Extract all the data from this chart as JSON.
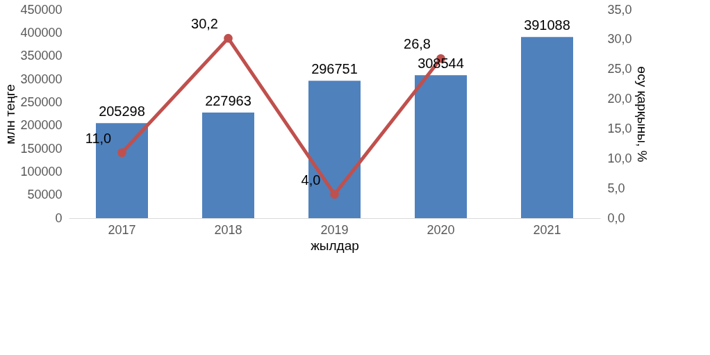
{
  "chart_data": {
    "type": "bar",
    "xlabel": "жылдар",
    "ylabel": "млн теңге",
    "y2label": "өсу қарқыны, %",
    "categories": [
      "2017",
      "2018",
      "2019",
      "2020",
      "2021"
    ],
    "series": [
      {
        "color": "#4f81bd",
        "values": [
          205298,
          227963,
          296751,
          308544,
          391088
        ],
        "value_labels": [
          "205298",
          "227963",
          "296751",
          "308544",
          "391088"
        ]
      },
      {
        "type": "line",
        "axis": "y2",
        "color": "#c0504d",
        "values": [
          11.0,
          30.2,
          4.0,
          26.8,
          null
        ],
        "value_labels": [
          "11,0",
          "30,2",
          "4,0",
          "26,8",
          null
        ]
      }
    ],
    "ylim": [
      0,
      450000
    ],
    "yticks": [
      0,
      50000,
      100000,
      150000,
      200000,
      250000,
      300000,
      350000,
      400000,
      450000
    ],
    "y2lim": [
      0,
      35
    ],
    "y2ticks": [
      {
        "value": 0,
        "label": "0,0"
      },
      {
        "value": 5,
        "label": "5,0"
      },
      {
        "value": 10,
        "label": "10,0"
      },
      {
        "value": 15,
        "label": "15,0"
      },
      {
        "value": 20,
        "label": "20,0"
      },
      {
        "value": 25,
        "label": "25,0"
      },
      {
        "value": 30,
        "label": "30,0"
      },
      {
        "value": 35,
        "label": "35,0"
      }
    ],
    "marker": "circle"
  }
}
